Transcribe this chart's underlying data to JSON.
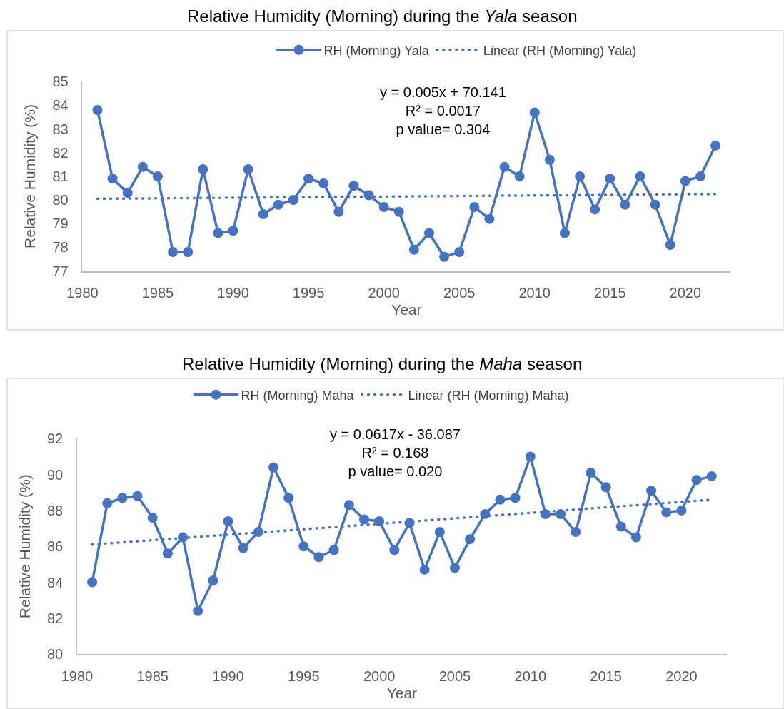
{
  "chart_data": [
    {
      "type": "line",
      "title": "Relative Humidity (Morning) during the Yala season",
      "xlabel": "Year",
      "ylabel": "Relative Humidity (%)",
      "xlim": [
        1980,
        2023
      ],
      "xticks": [
        1980,
        1985,
        1990,
        1995,
        2000,
        2005,
        2010,
        2015,
        2020
      ],
      "ylim": [
        77,
        85
      ],
      "yticks": [
        77,
        78,
        79,
        80,
        81,
        82,
        83,
        84,
        85
      ],
      "legend": "top",
      "annotations": [
        "y = 0.005x + 70.141",
        "R² = 0.0017",
        "p value= 0.304"
      ],
      "series": [
        {
          "name": "RH (Morning) Yala",
          "color": "#4472c4",
          "marker": "circle",
          "line_style": "solid",
          "x": [
            1981,
            1982,
            1983,
            1984,
            1985,
            1986,
            1987,
            1988,
            1989,
            1990,
            1991,
            1992,
            1993,
            1994,
            1995,
            1996,
            1997,
            1998,
            1999,
            2000,
            2001,
            2002,
            2003,
            2004,
            2005,
            2006,
            2007,
            2008,
            2009,
            2010,
            2011,
            2012,
            2013,
            2014,
            2015,
            2016,
            2017,
            2018,
            2019,
            2020,
            2021,
            2022
          ],
          "values": [
            83.8,
            80.9,
            80.3,
            81.4,
            81.0,
            77.8,
            77.8,
            81.3,
            78.6,
            78.7,
            81.3,
            79.4,
            79.8,
            80.0,
            80.9,
            80.7,
            79.5,
            80.6,
            80.2,
            79.7,
            79.5,
            77.9,
            78.6,
            77.6,
            77.8,
            79.7,
            79.2,
            81.4,
            81.0,
            83.7,
            81.7,
            78.6,
            81.0,
            79.6,
            80.9,
            79.8,
            81.0,
            79.8,
            78.1,
            80.8,
            81.0,
            82.3
          ]
        },
        {
          "name": "Linear (RH (Morning) Yala)",
          "color": "#4472c4",
          "marker": "none",
          "line_style": "dotted",
          "x": [
            1981,
            2022
          ],
          "values": [
            80.05,
            80.25
          ]
        }
      ]
    },
    {
      "type": "line",
      "title": "Relative Humidity (Morning) during the Maha season",
      "xlabel": "Year",
      "ylabel": "Relative Humidity (%)",
      "xlim": [
        1980,
        2023
      ],
      "xticks": [
        1980,
        1985,
        1990,
        1995,
        2000,
        2005,
        2010,
        2015,
        2020
      ],
      "ylim": [
        80,
        92
      ],
      "yticks": [
        80,
        82,
        84,
        86,
        88,
        90,
        92
      ],
      "legend": "top",
      "annotations": [
        "y = 0.0617x - 36.087",
        "R² = 0.168",
        "p value= 0.020"
      ],
      "series": [
        {
          "name": "RH (Morning) Maha",
          "color": "#4472c4",
          "marker": "circle",
          "line_style": "solid",
          "x": [
            1981,
            1982,
            1983,
            1984,
            1985,
            1986,
            1987,
            1988,
            1989,
            1990,
            1991,
            1992,
            1993,
            1994,
            1995,
            1996,
            1997,
            1998,
            1999,
            2000,
            2001,
            2002,
            2003,
            2004,
            2005,
            2006,
            2007,
            2008,
            2009,
            2010,
            2011,
            2012,
            2013,
            2014,
            2015,
            2016,
            2017,
            2018,
            2019,
            2020,
            2021,
            2022
          ],
          "values": [
            84.0,
            88.4,
            88.7,
            88.8,
            87.6,
            85.6,
            86.5,
            82.4,
            84.1,
            87.4,
            85.9,
            86.8,
            90.4,
            88.7,
            86.0,
            85.4,
            85.8,
            88.3,
            87.5,
            87.4,
            85.8,
            87.3,
            84.7,
            86.8,
            84.8,
            86.4,
            87.8,
            88.6,
            88.7,
            91.0,
            87.8,
            87.8,
            86.8,
            90.1,
            89.3,
            87.1,
            86.5,
            89.1,
            87.9,
            88.0,
            89.7,
            89.9
          ]
        },
        {
          "name": "Linear (RH (Morning) Maha)",
          "color": "#4472c4",
          "marker": "none",
          "line_style": "dotted",
          "x": [
            1981,
            2022
          ],
          "values": [
            86.1,
            88.6
          ]
        }
      ]
    }
  ]
}
